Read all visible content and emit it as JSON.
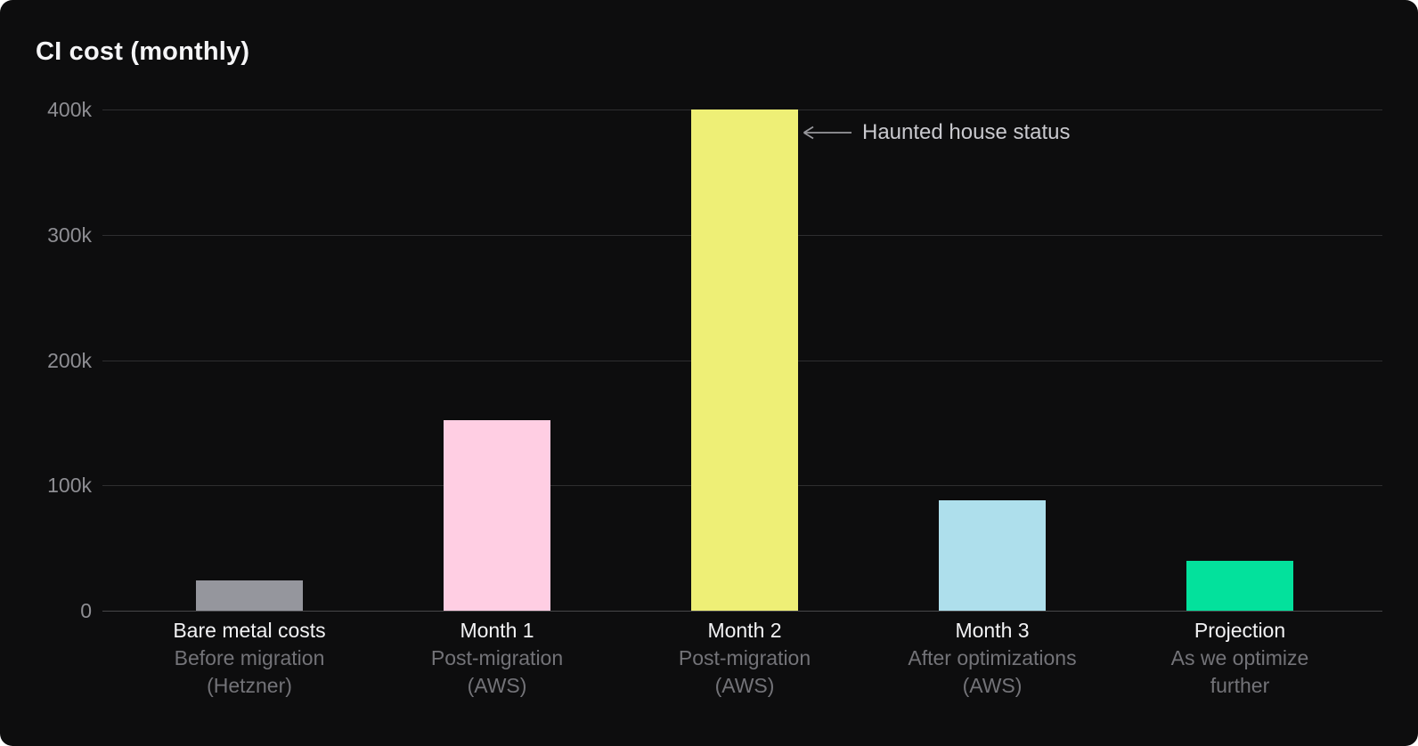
{
  "colors": {
    "background": "#0d0d0e",
    "title_text": "#f5f5f7",
    "tick_label": "#8e8e93",
    "gridline": "#2e2e30",
    "baseline": "#47474a",
    "category_label": "#f2f2f4",
    "category_sublabel": "#737378",
    "annotation_text": "#c9c9ce",
    "arrow": "#98989d"
  },
  "chart_data": {
    "type": "bar",
    "title": "CI cost (monthly)",
    "xlabel": "",
    "ylabel": "",
    "ylim": [
      0,
      400000
    ],
    "grid": true,
    "legend": "none",
    "y_ticks": [
      {
        "label": "400k",
        "value": 400000
      },
      {
        "label": "300k",
        "value": 300000
      },
      {
        "label": "200k",
        "value": 200000
      },
      {
        "label": "100k",
        "value": 100000
      },
      {
        "label": "0",
        "value": 0
      }
    ],
    "categories": [
      {
        "label": "Bare metal costs",
        "sublabel": "Before migration\n(Hetzner)",
        "value": 24000,
        "color": "#95969d"
      },
      {
        "label": "Month 1",
        "sublabel": "Post-migration\n(AWS)",
        "value": 152000,
        "color": "#ffcee3"
      },
      {
        "label": "Month 2",
        "sublabel": "Post-migration\n(AWS)",
        "value": 400000,
        "color": "#eeef76"
      },
      {
        "label": "Month 3",
        "sublabel": "After optimizations\n(AWS)",
        "value": 88000,
        "color": "#aedfec"
      },
      {
        "label": "Projection",
        "sublabel": "As we optimize\nfurther",
        "value": 40000,
        "color": "#03e19c"
      }
    ],
    "annotation": {
      "text": "Haunted house status",
      "icon": "left-arrow-icon",
      "points_to": "Month 2"
    }
  }
}
